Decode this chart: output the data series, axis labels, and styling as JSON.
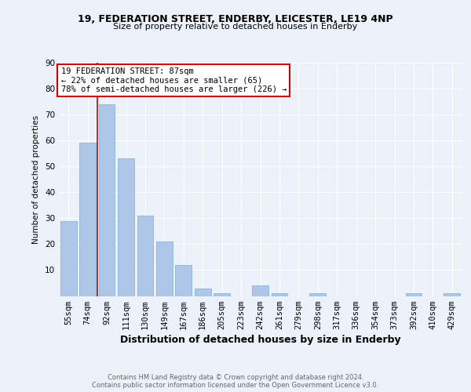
{
  "title1": "19, FEDERATION STREET, ENDERBY, LEICESTER, LE19 4NP",
  "title2": "Size of property relative to detached houses in Enderby",
  "xlabel": "Distribution of detached houses by size in Enderby",
  "ylabel": "Number of detached properties",
  "categories": [
    "55sqm",
    "74sqm",
    "92sqm",
    "111sqm",
    "130sqm",
    "149sqm",
    "167sqm",
    "186sqm",
    "205sqm",
    "223sqm",
    "242sqm",
    "261sqm",
    "279sqm",
    "298sqm",
    "317sqm",
    "336sqm",
    "354sqm",
    "373sqm",
    "392sqm",
    "410sqm",
    "429sqm"
  ],
  "values": [
    29,
    59,
    74,
    53,
    31,
    21,
    12,
    3,
    1,
    0,
    4,
    1,
    0,
    1,
    0,
    0,
    0,
    0,
    1,
    0,
    1
  ],
  "bar_color": "#aec6e8",
  "bar_edge_color": "#7bafd4",
  "vline_color": "#cc0000",
  "annotation_text": "19 FEDERATION STREET: 87sqm\n← 22% of detached houses are smaller (65)\n78% of semi-detached houses are larger (226) →",
  "annotation_box_facecolor": "#ffffff",
  "annotation_box_edgecolor": "#cc0000",
  "ylim": [
    0,
    90
  ],
  "yticks": [
    0,
    10,
    20,
    30,
    40,
    50,
    60,
    70,
    80,
    90
  ],
  "footer_text": "Contains HM Land Registry data © Crown copyright and database right 2024.\nContains public sector information licensed under the Open Government Licence v3.0.",
  "bg_color": "#edf2fa",
  "plot_bg_color": "#edf2fa",
  "grid_color": "#ffffff",
  "title1_fontsize": 9,
  "title2_fontsize": 8,
  "xlabel_fontsize": 9,
  "ylabel_fontsize": 7.5,
  "tick_fontsize": 7.5,
  "footer_fontsize": 6,
  "ann_fontsize": 7.5
}
